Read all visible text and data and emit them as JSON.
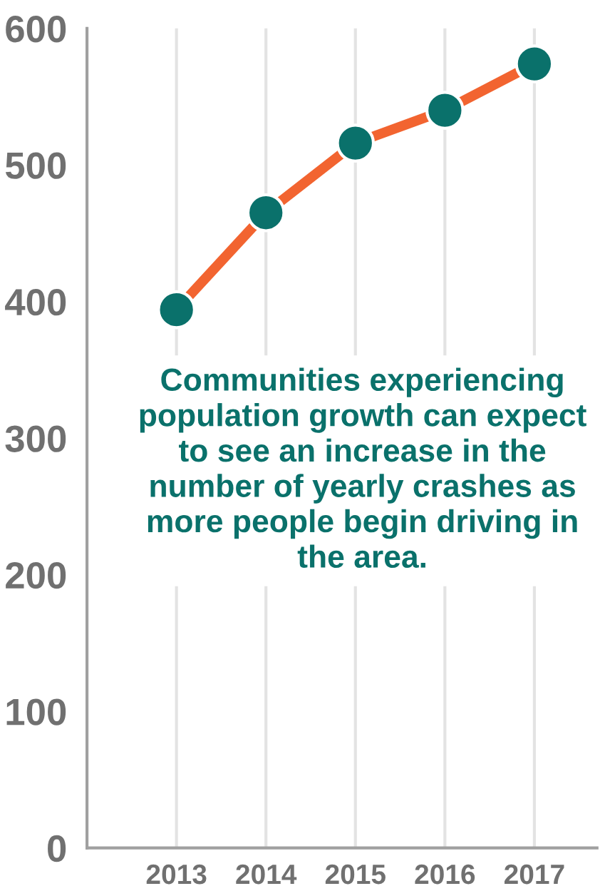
{
  "chart_data": {
    "type": "line",
    "categories": [
      "2013",
      "2014",
      "2015",
      "2016",
      "2017"
    ],
    "series": [
      {
        "color": "#f26430",
        "colors": [
          "#0a716b",
          "#0a716b",
          "#0a716b",
          "#0a716b",
          "#0a716b"
        ],
        "values": [
          394,
          465,
          516,
          540,
          574
        ]
      }
    ],
    "ylim": [
      0,
      600
    ],
    "yticks": [
      0,
      100,
      200,
      300,
      400,
      500,
      600
    ],
    "grid": "x",
    "marker": "circle",
    "line_style": "solid",
    "legend": false,
    "annotations": [
      "Communities experiencing population growth can expect to see an increase in the number of yearly crashes as more people begin driving in the area."
    ]
  }
}
